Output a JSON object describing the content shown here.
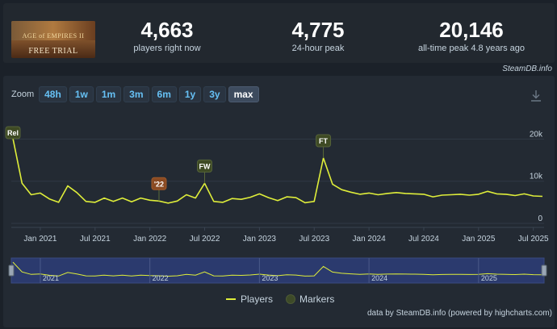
{
  "game": {
    "thumb_title": "AGE of EMPIRES II",
    "thumb_sub": "FREE TRIAL"
  },
  "stats": [
    {
      "value": "4,663",
      "label": "players right now"
    },
    {
      "value": "4,775",
      "label": "24-hour peak"
    },
    {
      "value": "20,146",
      "label": "all-time peak 4.8 years ago"
    }
  ],
  "brand": "SteamDB.info",
  "zoom": {
    "label": "Zoom",
    "options": [
      "48h",
      "1w",
      "1m",
      "3m",
      "6m",
      "1y",
      "3y",
      "max"
    ],
    "active": "max"
  },
  "icons": {
    "download": "download-icon"
  },
  "colors": {
    "line": "#dfee3a",
    "marker_green": "#3e4a24",
    "marker_brown": "#8a4a22",
    "active_tab": "#3d4b5e"
  },
  "chart_data": {
    "type": "line",
    "x_ticks": [
      "Jan 2021",
      "Jul 2021",
      "Jan 2022",
      "Jul 2022",
      "Jan 2023",
      "Jul 2023",
      "Jan 2024",
      "Jul 2024",
      "Jan 2025",
      "Jul 2025"
    ],
    "y_ticks": [
      "0",
      "10k",
      "20k"
    ],
    "ylim": [
      0,
      22000
    ],
    "x": [
      "2020-10",
      "2020-11",
      "2020-12",
      "2021-01",
      "2021-02",
      "2021-03",
      "2021-04",
      "2021-05",
      "2021-06",
      "2021-07",
      "2021-08",
      "2021-09",
      "2021-10",
      "2021-11",
      "2021-12",
      "2022-01",
      "2022-02",
      "2022-03",
      "2022-04",
      "2022-05",
      "2022-06",
      "2022-07",
      "2022-08",
      "2022-09",
      "2022-10",
      "2022-11",
      "2022-12",
      "2023-01",
      "2023-02",
      "2023-03",
      "2023-04",
      "2023-05",
      "2023-06",
      "2023-07",
      "2023-08",
      "2023-09",
      "2023-10",
      "2023-11",
      "2023-12",
      "2024-01",
      "2024-02",
      "2024-03",
      "2024-04",
      "2024-05",
      "2024-06",
      "2024-07",
      "2024-08",
      "2024-09",
      "2024-10",
      "2024-11",
      "2024-12",
      "2025-01",
      "2025-02",
      "2025-03",
      "2025-04",
      "2025-05",
      "2025-06",
      "2025-07",
      "2025-08"
    ],
    "series": [
      {
        "name": "Players",
        "values": [
          20146,
          9500,
          6800,
          7200,
          5800,
          5000,
          8900,
          7300,
          5200,
          5000,
          6000,
          5200,
          6000,
          5100,
          6000,
          5500,
          5300,
          4800,
          5300,
          6800,
          6000,
          9500,
          5200,
          5000,
          5900,
          5700,
          6200,
          7000,
          6100,
          5400,
          6300,
          6100,
          4900,
          5200,
          15500,
          9300,
          8000,
          7400,
          6900,
          7200,
          6800,
          7100,
          7300,
          7100,
          7000,
          6900,
          6300,
          6700,
          6800,
          6900,
          6700,
          6900,
          7600,
          7000,
          6900,
          6600,
          7000,
          6500,
          6400
        ]
      }
    ],
    "markers": [
      {
        "label": "Rel",
        "index": 0,
        "color": "green"
      },
      {
        "label": "'22",
        "index": 16,
        "color": "brown"
      },
      {
        "label": "FW",
        "index": 21,
        "color": "green"
      },
      {
        "label": "FT",
        "index": 34,
        "color": "green"
      }
    ],
    "navigator_labels": [
      "2021",
      "2022",
      "2023",
      "2024",
      "2025"
    ],
    "legend": [
      "Players",
      "Markers"
    ]
  },
  "credit": "data by SteamDB.info (powered by highcharts.com)"
}
